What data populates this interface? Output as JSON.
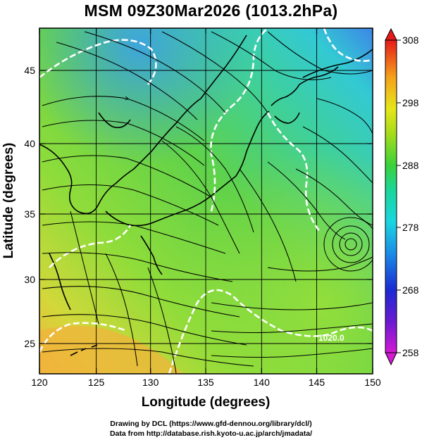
{
  "title": "MSM 09Z30Mar2026 (1013.2hPa)",
  "xlabel": "Longitude (degrees)",
  "ylabel": "Latitude  (degrees)",
  "x_ticks": [
    120,
    125,
    130,
    135,
    140,
    145,
    150
  ],
  "y_ticks": [
    25,
    30,
    35,
    40,
    45
  ],
  "xlim": [
    120,
    150
  ],
  "ylim": [
    22.5,
    47.7
  ],
  "colorbar": {
    "min": 258,
    "max": 308,
    "labels": [
      308,
      298,
      288,
      278,
      268,
      258
    ]
  },
  "contour_label": "1020.0",
  "credits": {
    "line1": "Drawing by DCL (https://www.gfd-dennou.org/library/dcl/)",
    "line2": "Data from http://database.rish.kyoto-u.ac.jp/arch/jmadata/"
  },
  "colors": {
    "warm": "#f5b93a",
    "mid": "#7ad63a",
    "cool": "#2fd8c8",
    "cold": "#3a7de8"
  }
}
